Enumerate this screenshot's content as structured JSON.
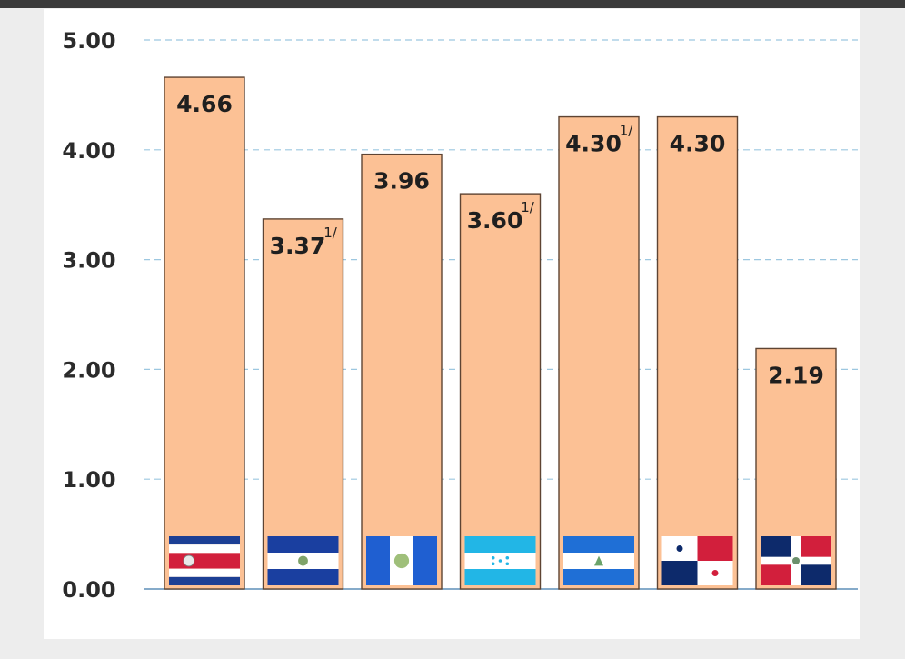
{
  "chart_data": {
    "type": "bar",
    "categories": [
      "Costa Rica",
      "El Salvador",
      "Guatemala",
      "Honduras",
      "Nicaragua",
      "Panamá",
      "República Dominicana"
    ],
    "values": [
      4.66,
      3.37,
      3.96,
      3.6,
      4.3,
      4.3,
      2.19
    ],
    "value_labels": [
      "4.66",
      "3.37",
      "3.96",
      "3.60",
      "4.30",
      "4.30",
      "2.19"
    ],
    "notes": [
      "",
      "1/",
      "",
      "1/",
      "1/",
      "",
      ""
    ],
    "ylim": [
      0,
      5
    ],
    "yticks": [
      0,
      1,
      2,
      3,
      4,
      5
    ],
    "ytick_labels": [
      "0.00",
      "1.00",
      "2.00",
      "3.00",
      "4.00",
      "5.00"
    ],
    "grid": true,
    "legend": "none",
    "category_markers": [
      "costa-rica-flag-icon",
      "el-salvador-flag-icon",
      "guatemala-flag-icon",
      "honduras-flag-icon",
      "nicaragua-flag-icon",
      "panama-flag-icon",
      "dominican-republic-flag-icon"
    ],
    "title": "",
    "xlabel": "",
    "ylabel": ""
  },
  "colors": {
    "bar_fill": "#fcc195",
    "bar_stroke": "#5e4433",
    "grid": "#9cc7e0",
    "axis": "#5f8fb8"
  }
}
